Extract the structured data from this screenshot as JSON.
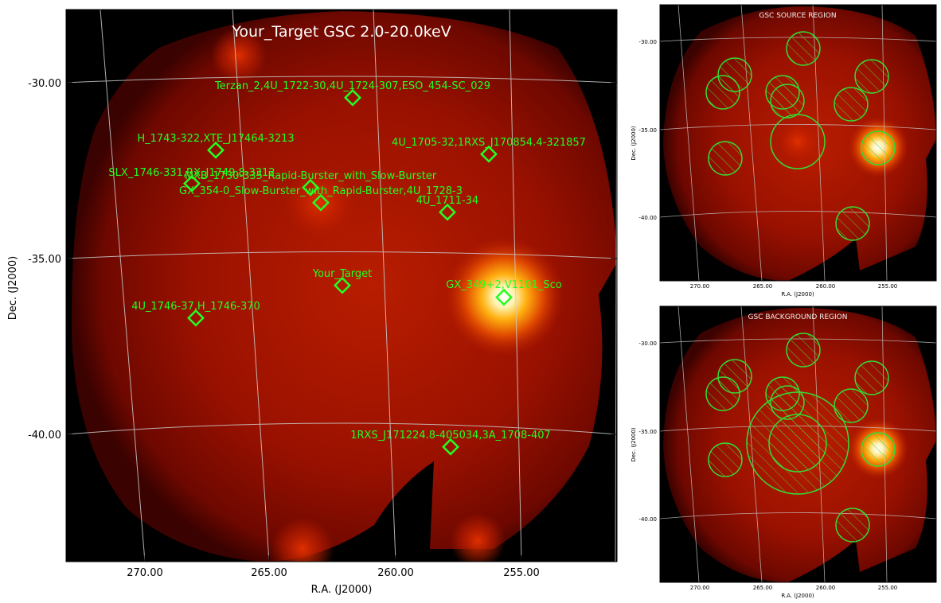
{
  "main_panel": {
    "title": "Your_Target GSC 2.0-20.0keV",
    "xlabel": "R.A. (J2000)",
    "ylabel": "Dec. (J2000)",
    "x_ticks": [
      "270.00",
      "265.00",
      "260.00",
      "255.00"
    ],
    "y_ticks": [
      "-30.00",
      "-35.00",
      "-40.00"
    ],
    "sources": [
      {
        "label": "Terzan_2,4U_1722-30,4U_1724-307,ESO_454-SC_029"
      },
      {
        "label": "H_1743-322,XTE_J17464-3213"
      },
      {
        "label": "4U_1705-32,1RXS_J170854.4-321857"
      },
      {
        "label": "SLX_1746-331,RX_J1749.8-3312"
      },
      {
        "label": "MXB_1730-335_Rapid-Burster_with_Slow-Burster"
      },
      {
        "label": "GX_354-0_Slow-Burster_with_Rapid-Burster,4U_1728-3"
      },
      {
        "label": "4U_1711-34"
      },
      {
        "label": "Your_Target"
      },
      {
        "label": "GX_349+2,V1101_Sco"
      },
      {
        "label": "4U_1746-37,H_1746-370"
      },
      {
        "label": "1RXS_J171224.8-405034,3A_1708-407"
      }
    ]
  },
  "source_region_panel": {
    "title": "GSC SOURCE REGION",
    "xlabel": "R.A. (J2000)",
    "ylabel": "Dec. (J2000)",
    "x_ticks": [
      "270.00",
      "265.00",
      "260.00",
      "255.00"
    ],
    "y_ticks": [
      "-30.00",
      "-35.00",
      "-40.00"
    ]
  },
  "background_region_panel": {
    "title": "GSC BACKGROUND REGION",
    "xlabel": "R.A. (J2000)",
    "ylabel": "Dec. (J2000)",
    "x_ticks": [
      "270.00",
      "265.00",
      "260.00",
      "255.00"
    ],
    "y_ticks": [
      "-30.00",
      "-35.00",
      "-40.00"
    ]
  },
  "colors": {
    "marker": "#22ff22",
    "grid": "#cccccc",
    "background": "#000000"
  }
}
